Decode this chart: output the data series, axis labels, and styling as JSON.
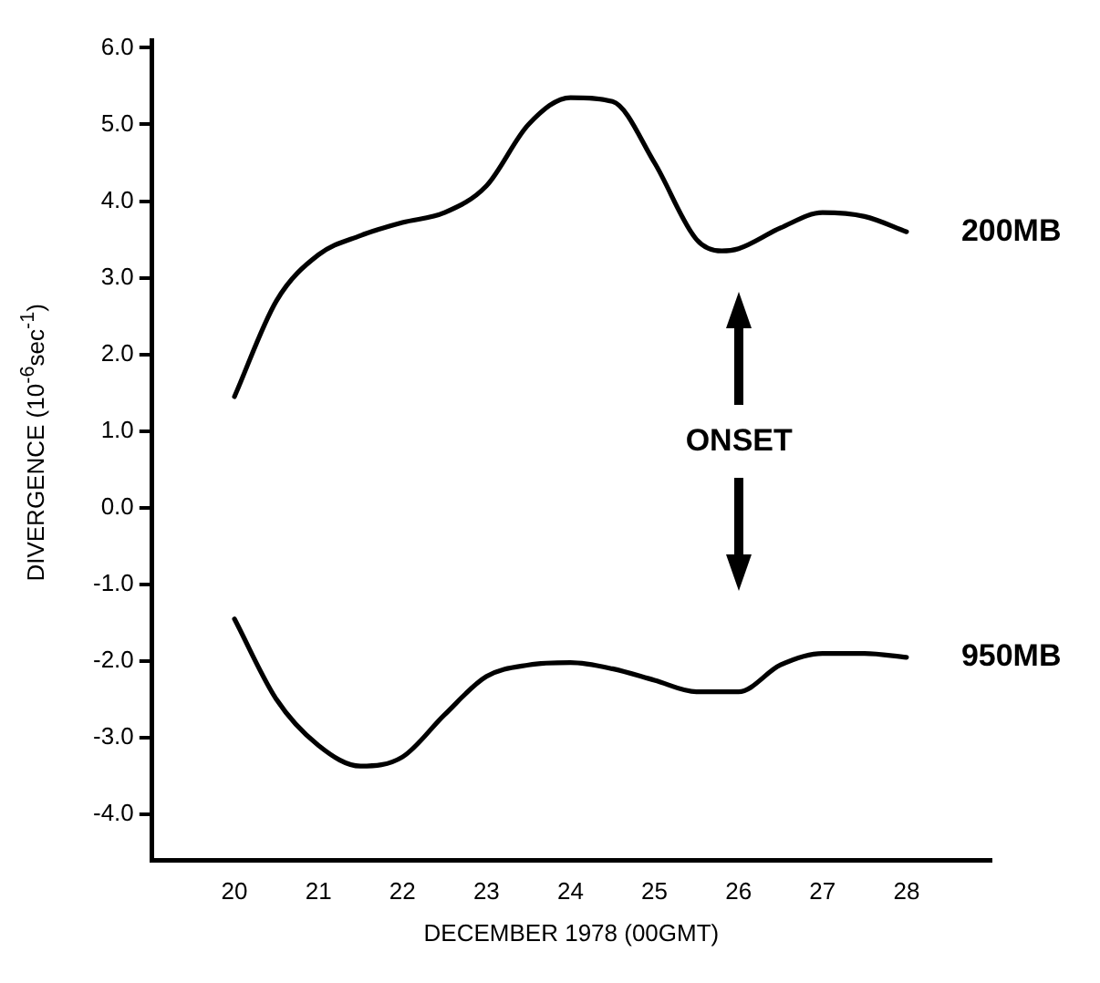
{
  "chart_data": {
    "type": "line",
    "xlabel": "DECEMBER 1978 (00GMT)",
    "ylabel": "DIVERGENCE (10$^{-6}$sec$^{-1}$)",
    "xlim": [
      19.02,
      29.0
    ],
    "xticks": [
      20,
      21,
      22,
      23,
      24,
      25,
      26,
      27,
      28
    ],
    "ylim": [
      -4.6,
      6.1
    ],
    "yticks": [
      {
        "value": -4,
        "label": "-4.0"
      },
      {
        "value": -3,
        "label": "-3.0"
      },
      {
        "value": -2,
        "label": "-2.0"
      },
      {
        "value": -1,
        "label": "-1.0"
      },
      {
        "value": 0,
        "label": "0.0"
      },
      {
        "value": 1,
        "label": "1.0"
      },
      {
        "value": 2,
        "label": "2.0"
      },
      {
        "value": 3,
        "label": "3.0"
      },
      {
        "value": 4,
        "label": "4.0"
      },
      {
        "value": 5,
        "label": "5.0"
      },
      {
        "value": 6,
        "label": "6.0"
      }
    ],
    "grid": false,
    "legend": false,
    "marker": "none",
    "line_style": "solid",
    "series": [
      {
        "name": "200MB",
        "color": "#000000",
        "x": [
          20,
          20.5,
          21,
          21.5,
          22,
          22.5,
          23,
          23.5,
          24,
          24.5,
          25,
          25.5,
          25.8,
          26,
          26.5,
          27,
          27.5,
          28
        ],
        "values": [
          1.45,
          2.7,
          3.3,
          3.55,
          3.72,
          3.85,
          4.2,
          5.0,
          5.35,
          5.3,
          4.5,
          3.5,
          3.35,
          3.38,
          3.65,
          3.85,
          3.8,
          3.6
        ]
      },
      {
        "name": "950MB",
        "color": "#000000",
        "x": [
          20,
          20.5,
          21,
          21.5,
          22,
          22.5,
          23,
          23.5,
          24,
          24.5,
          25,
          25.5,
          26,
          26.5,
          27,
          27.5,
          28
        ],
        "values": [
          -1.45,
          -2.5,
          -3.1,
          -3.37,
          -3.25,
          -2.7,
          -2.2,
          -2.05,
          -2.02,
          -2.1,
          -2.25,
          -2.4,
          -2.4,
          -2.05,
          -1.9,
          -1.9,
          -1.95
        ]
      }
    ],
    "annotations": [
      "ONSET"
    ]
  }
}
